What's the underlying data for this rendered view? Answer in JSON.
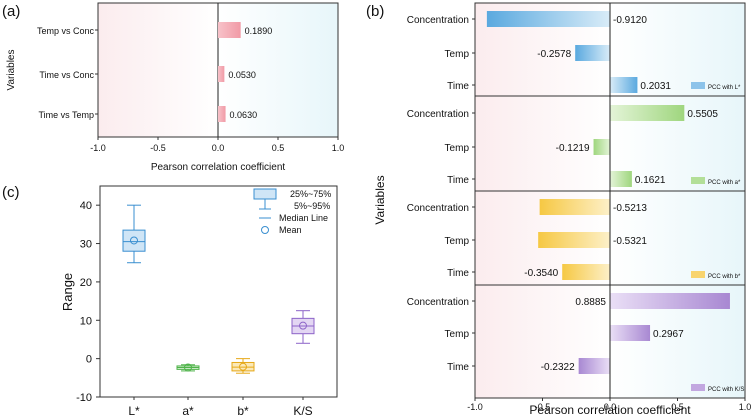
{
  "colors": {
    "bg_left": "#fbecee",
    "bg_right": "#e7f6fa",
    "panel_a_bar": "#f4a7b1",
    "blue": "#79b8e2",
    "green": "#a9da8b",
    "yellow": "#f7cf5a",
    "purple": "#b89ad8",
    "box_blue": "#3a8fd0",
    "box_green": "#4fb34a",
    "box_yellow": "#e6a817",
    "box_purple": "#8c63c8"
  },
  "chart_data": [
    {
      "panel": "(a)",
      "type": "bar",
      "orientation": "horizontal",
      "categories": [
        "Temp vs Conc",
        "Time vs Conc",
        "Time vs Temp"
      ],
      "values": [
        0.189,
        0.053,
        0.063
      ],
      "value_labels": [
        "0.1890",
        "0.0530",
        "0.0630"
      ],
      "xlabel": "Pearson correlation coefficient",
      "ylabel": "Variables",
      "xlim": [
        -1.0,
        1.0
      ],
      "xticks": [
        "-1.0",
        "-0.5",
        "0.0",
        "0.5",
        "1.0"
      ]
    },
    {
      "panel": "(b)",
      "type": "bar",
      "orientation": "horizontal",
      "xlabel": "Pearson correlation coefficient",
      "ylabel": "Variables",
      "xlim": [
        -1.0,
        1.0
      ],
      "xticks": [
        "-1.0",
        "-0.5",
        "0.0",
        "0.5",
        "1.0"
      ],
      "subplots": [
        {
          "legend": "PCC with L*",
          "categories": [
            "Concentration",
            "Temp",
            "Time"
          ],
          "values": [
            -0.912,
            -0.2578,
            0.2031
          ],
          "value_labels": [
            "-0.9120",
            "-0.2578",
            "0.2031"
          ]
        },
        {
          "legend": "PCC with a*",
          "categories": [
            "Concentration",
            "Temp",
            "Time"
          ],
          "values": [
            0.5505,
            -0.1219,
            0.1621
          ],
          "value_labels": [
            "0.5505",
            "-0.1219",
            "0.1621"
          ]
        },
        {
          "legend": "PCC with b*",
          "categories": [
            "Concentration",
            "Temp",
            "Time"
          ],
          "values": [
            -0.5213,
            -0.5321,
            -0.354
          ],
          "value_labels": [
            "-0.5213",
            "-0.5321",
            "-0.3540"
          ]
        },
        {
          "legend": "PCC with K/S",
          "categories": [
            "Concentration",
            "Temp",
            "Time"
          ],
          "values": [
            0.8885,
            0.2967,
            -0.2322
          ],
          "value_labels": [
            "0.8885",
            "0.2967",
            "-0.2322"
          ]
        }
      ]
    },
    {
      "panel": "(c)",
      "type": "box",
      "categories": [
        "L*",
        "a*",
        "b*",
        "K/S"
      ],
      "ylabel": "Range",
      "ylim": [
        -10,
        45
      ],
      "yticks": [
        "-10",
        "0",
        "10",
        "20",
        "30",
        "40"
      ],
      "boxes": [
        {
          "name": "L*",
          "p5": 25.0,
          "q1": 28.0,
          "median": 30.5,
          "q3": 33.5,
          "p95": 40.0,
          "mean": 30.8
        },
        {
          "name": "a*",
          "p5": -3.2,
          "q1": -2.8,
          "median": -2.3,
          "q3": -1.9,
          "p95": -1.6,
          "mean": -2.3
        },
        {
          "name": "b*",
          "p5": -3.8,
          "q1": -3.2,
          "median": -2.2,
          "q3": -1.0,
          "p95": 0.0,
          "mean": -2.1
        },
        {
          "name": "K/S",
          "p5": 4.0,
          "q1": 6.5,
          "median": 8.5,
          "q3": 10.5,
          "p95": 12.5,
          "mean": 8.6
        }
      ],
      "legend": {
        "box": "25%~75%",
        "whisker": "5%~95%",
        "median": "Median Line",
        "mean": "Mean"
      }
    }
  ]
}
